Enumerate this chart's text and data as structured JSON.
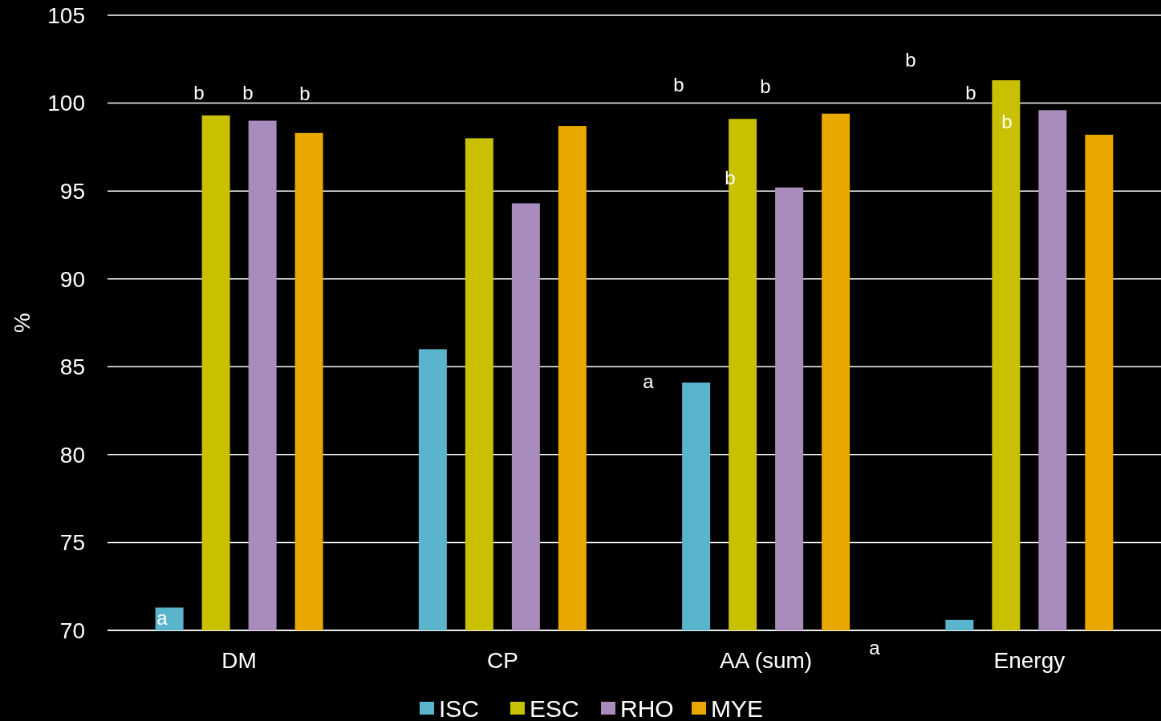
{
  "chart_data": {
    "type": "bar",
    "ylabel": "%",
    "categories": [
      "DM",
      "CP",
      "AA (sum)",
      "Energy"
    ],
    "series": [
      {
        "name": "ISC",
        "color": "#5ab4cc",
        "values": [
          71.3,
          86.0,
          84.1,
          70.6
        ]
      },
      {
        "name": "ESC",
        "color": "#c8c000",
        "values": [
          99.3,
          98.0,
          99.1,
          101.3
        ]
      },
      {
        "name": "RHO",
        "color": "#a88cbd",
        "values": [
          99.0,
          94.3,
          95.2,
          99.6
        ]
      },
      {
        "name": "MYE",
        "color": "#e8a800",
        "values": [
          98.3,
          98.7,
          99.4,
          98.2
        ]
      }
    ],
    "ylim": [
      70,
      105
    ],
    "yticks": [
      70,
      75,
      80,
      85,
      90,
      95,
      100,
      105
    ],
    "grid": "y",
    "legend": "bottom",
    "annotations": [
      "a",
      "b",
      "b",
      "b",
      "b",
      "a",
      "b",
      "b",
      "b",
      "b",
      "b",
      "a"
    ]
  }
}
